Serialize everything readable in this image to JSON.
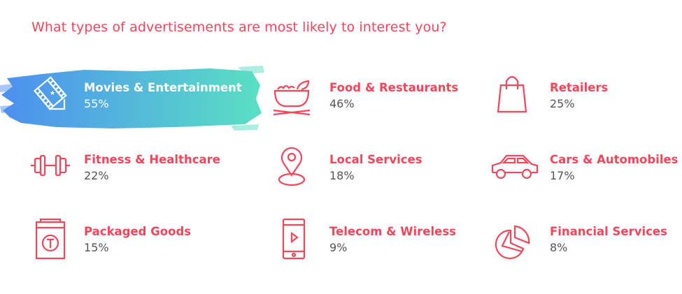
{
  "title": "What types of advertisements are most likely to interest you?",
  "colors": {
    "accent": "#f4455b",
    "text": "#555555",
    "highlight_start": "#4d8ff0",
    "highlight_end": "#5ae0c4"
  },
  "items": [
    {
      "label": "Movies & Entertainment",
      "percent": "55%",
      "icon": "film-icon",
      "highlighted": true
    },
    {
      "label": "Food & Restaurants",
      "percent": "46%",
      "icon": "food-bowl-icon"
    },
    {
      "label": "Retailers",
      "percent": "25%",
      "icon": "shopping-bag-icon"
    },
    {
      "label": "Fitness & Healthcare",
      "percent": "22%",
      "icon": "dumbbell-icon"
    },
    {
      "label": "Local Services",
      "percent": "18%",
      "icon": "map-pin-icon"
    },
    {
      "label": "Cars & Automobiles",
      "percent": "17%",
      "icon": "car-icon"
    },
    {
      "label": "Packaged Goods",
      "percent": "15%",
      "icon": "package-icon"
    },
    {
      "label": "Telecom & Wireless",
      "percent": "9%",
      "icon": "phone-icon"
    },
    {
      "label": "Financial Services",
      "percent": "8%",
      "icon": "pie-chart-icon"
    }
  ],
  "chart_data": {
    "type": "table",
    "title": "What types of advertisements are most likely to interest you?",
    "categories": [
      "Movies & Entertainment",
      "Food & Restaurants",
      "Retailers",
      "Fitness & Healthcare",
      "Local Services",
      "Cars & Automobiles",
      "Packaged Goods",
      "Telecom & Wireless",
      "Financial Services"
    ],
    "values": [
      55,
      46,
      25,
      22,
      18,
      17,
      15,
      9,
      8
    ],
    "unit": "%"
  }
}
